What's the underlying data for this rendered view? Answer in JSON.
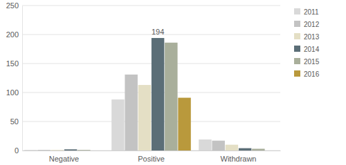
{
  "chart_data": {
    "type": "bar",
    "categories": [
      "Negative",
      "Positive",
      "Withdrawn"
    ],
    "series": [
      {
        "name": "2011",
        "color": "#d9d9d9",
        "values": [
          1,
          88,
          19
        ]
      },
      {
        "name": "2012",
        "color": "#c3c3c3",
        "values": [
          1,
          131,
          17
        ]
      },
      {
        "name": "2013",
        "color": "#e4dfc5",
        "values": [
          1,
          113,
          10
        ]
      },
      {
        "name": "2014",
        "color": "#5b6e77",
        "values": [
          2,
          194,
          4
        ],
        "value_labels": [
          null,
          "194",
          null
        ]
      },
      {
        "name": "2015",
        "color": "#a9af9b",
        "values": [
          1,
          186,
          3
        ]
      },
      {
        "name": "2016",
        "color": "#b9993c",
        "values": [
          0,
          91,
          0
        ]
      }
    ],
    "ylim": [
      0,
      250
    ],
    "yticks": [
      0,
      50,
      100,
      150,
      200,
      250
    ],
    "grid": true,
    "legend": "right"
  }
}
